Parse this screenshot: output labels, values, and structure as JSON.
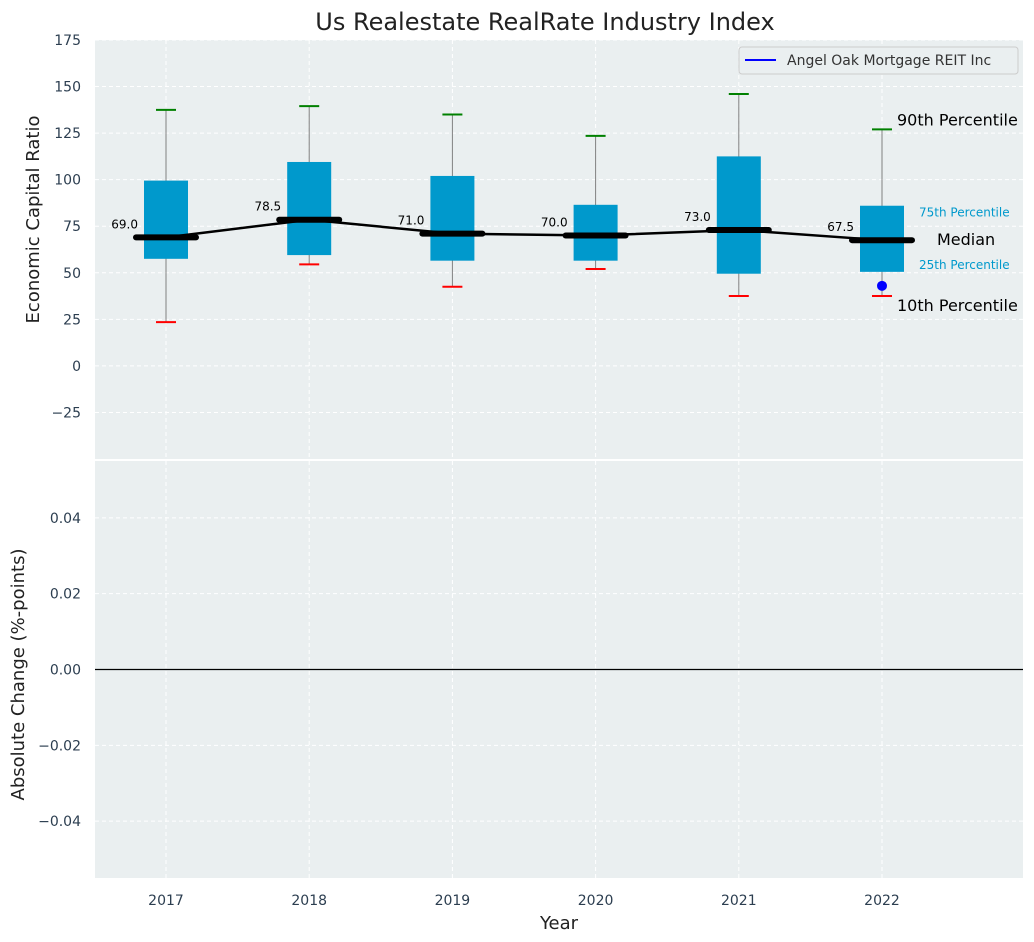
{
  "chart_data": {
    "type": "boxplot",
    "title": "Us Realestate RealRate Industry Index",
    "xlabel": "Year",
    "categories": [
      "2017",
      "2018",
      "2019",
      "2020",
      "2021",
      "2022"
    ],
    "top_panel": {
      "ylabel": "Economic Capital Ratio",
      "ylim": [
        -50,
        175
      ],
      "yticks": [
        "175",
        "150",
        "125",
        "100",
        "75",
        "50",
        "25",
        "0",
        "−25"
      ],
      "ytick_values": [
        175,
        150,
        125,
        100,
        75,
        50,
        25,
        0,
        -25
      ],
      "boxes": [
        {
          "p10": 23.5,
          "p25": 57.5,
          "median": 69.0,
          "p75": 99.5,
          "p90": 137.5,
          "label": "69.0"
        },
        {
          "p10": 54.5,
          "p25": 59.5,
          "median": 78.5,
          "p75": 109.5,
          "p90": 139.5,
          "label": "78.5"
        },
        {
          "p10": 42.5,
          "p25": 56.5,
          "median": 71.0,
          "p75": 102.0,
          "p90": 135.0,
          "label": "71.0"
        },
        {
          "p10": 52.0,
          "p25": 56.5,
          "median": 70.0,
          "p75": 86.5,
          "p90": 123.5,
          "label": "70.0"
        },
        {
          "p10": 37.5,
          "p25": 49.5,
          "median": 73.0,
          "p75": 112.5,
          "p90": 146.0,
          "label": "73.0"
        },
        {
          "p10": 37.5,
          "p25": 50.5,
          "median": 67.5,
          "p75": 86.0,
          "p90": 127.0,
          "label": "67.5"
        }
      ],
      "median_line": [
        69.0,
        78.5,
        71.0,
        70.0,
        73.0,
        67.5
      ],
      "company_points": [
        {
          "category": "2022",
          "value": 43.0
        }
      ],
      "legend": {
        "entries": [
          "Angel Oak Mortgage REIT Inc"
        ],
        "placement": "top-right"
      },
      "annotations": {
        "p90": "90th Percentile",
        "p75": "75th Percentile",
        "median": "Median",
        "p25": "25th Percentile",
        "p10": "10th Percentile"
      },
      "grid": true
    },
    "bottom_panel": {
      "ylabel": "Absolute Change (%-points)",
      "ylim": [
        -0.055,
        0.055
      ],
      "yticks": [
        "0.04",
        "0.02",
        "0.00",
        "−0.02",
        "−0.04"
      ],
      "ytick_values": [
        0.04,
        0.02,
        0.0,
        -0.02,
        -0.04
      ],
      "zero_line": 0.0,
      "grid": true
    },
    "colors": {
      "background": "#eaeff0",
      "box": "#0099cc",
      "median": "#000000",
      "whisker": "#808080",
      "cap_high": "#008000",
      "cap_low": "#ff0000",
      "company": "#0000ff",
      "annotation_small": "#0099cc",
      "tick_text": "#2c3e50",
      "axis_label": "#222222"
    }
  }
}
